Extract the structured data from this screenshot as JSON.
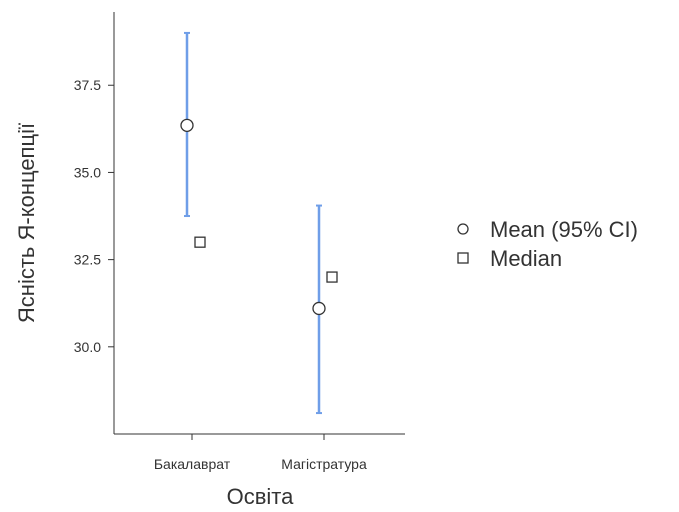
{
  "chart_data": {
    "type": "scatter",
    "title": "",
    "xlabel": "Освіта",
    "ylabel": "Ясність Я-концепції",
    "categories": [
      "Бакалаврат",
      "Магістратура"
    ],
    "ylim": [
      27.5,
      39.6
    ],
    "yticks": [
      30.0,
      32.5,
      35.0,
      37.5
    ],
    "ytick_labels": [
      "30.0",
      "32.5",
      "35.0",
      "37.5"
    ],
    "grid": false,
    "legend_position": "right",
    "series": [
      {
        "name": "Mean (95% CI)",
        "marker": "circle",
        "values": [
          36.35,
          31.1
        ],
        "ci_lower": [
          33.75,
          28.1
        ],
        "ci_upper": [
          39.0,
          34.05
        ]
      },
      {
        "name": "Median",
        "marker": "square",
        "values": [
          33.0,
          32.0
        ]
      }
    ],
    "colors": {
      "error_bar": "#6f9ee8",
      "marker_stroke": "#333333",
      "marker_fill": "#ffffff",
      "axis": "#333333"
    }
  }
}
